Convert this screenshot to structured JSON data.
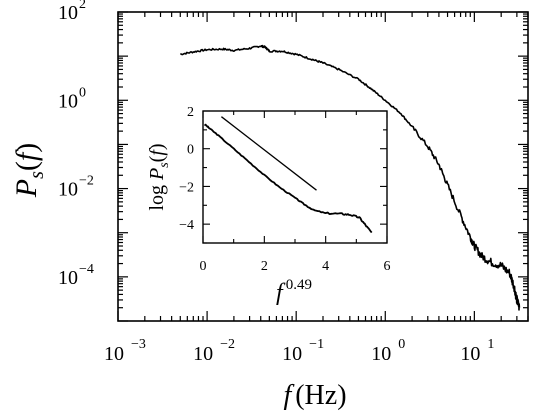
{
  "chart_data": [
    {
      "type": "line",
      "role": "main",
      "xscale": "log",
      "yscale": "log",
      "xlim": [
        0.001,
        40
      ],
      "ylim": [
        1e-05,
        100
      ],
      "xlabel": {
        "italic": "f",
        "unit": "(Hz)"
      },
      "ylabel": {
        "italic": "P",
        "sub": "s",
        "arg": "f"
      },
      "xticks": [
        {
          "value": 0.001,
          "base": "10",
          "exp": "−3"
        },
        {
          "value": 0.01,
          "base": "10",
          "exp": "−2"
        },
        {
          "value": 0.1,
          "base": "10",
          "exp": "−1"
        },
        {
          "value": 1,
          "base": "10",
          "exp": "0"
        },
        {
          "value": 10,
          "base": "10",
          "exp": "1"
        }
      ],
      "yticks": [
        {
          "value": 100,
          "base": "10",
          "exp": "2"
        },
        {
          "value": 1,
          "base": "10",
          "exp": "0"
        },
        {
          "value": 0.01,
          "base": "10",
          "exp": "−2"
        },
        {
          "value": 0.0001,
          "base": "10",
          "exp": "−4"
        }
      ],
      "series": [
        {
          "color": "#000000",
          "x": [
            0.005,
            0.007,
            0.01,
            0.015,
            0.02,
            0.03,
            0.04,
            0.045,
            0.05,
            0.07,
            0.1,
            0.15,
            0.2,
            0.3,
            0.5,
            0.7,
            1.0,
            1.5,
            2.0,
            3.0,
            4.0,
            5.0,
            7.0,
            9.0,
            10.0,
            12.0,
            15.0,
            20.0,
            25.0,
            28.0,
            30.0,
            32.0
          ],
          "y": [
            11,
            12.5,
            14,
            14.5,
            13.5,
            15,
            17,
            16,
            13,
            13,
            11,
            8.5,
            7,
            5,
            3,
            1.8,
            1.0,
            0.5,
            0.25,
            0.09,
            0.035,
            0.012,
            0.0025,
            0.0008,
            0.0005,
            0.0003,
            0.00022,
            0.00018,
            0.00012,
            6e-05,
            3e-05,
            2e-05
          ]
        }
      ]
    },
    {
      "type": "line",
      "role": "inset",
      "xlim": [
        0,
        6
      ],
      "ylim": [
        -5,
        2
      ],
      "xlabel": {
        "italic": "f",
        "exp": "0.49"
      },
      "ylabel": {
        "prefix": "log",
        "italic": "P",
        "sub": "s",
        "arg": "f"
      },
      "xticks": [
        0,
        2,
        4,
        6
      ],
      "yticks": [
        2,
        0,
        -2,
        -4
      ],
      "series": [
        {
          "color": "#000000",
          "x": [
            0.05,
            0.2,
            0.5,
            1.0,
            1.5,
            2.0,
            2.5,
            3.0,
            3.3,
            3.6,
            4.0,
            4.5,
            4.8,
            5.1,
            5.3,
            5.5
          ],
          "y": [
            1.3,
            1.1,
            0.7,
            0.0,
            -0.7,
            -1.4,
            -2.05,
            -2.6,
            -2.95,
            -3.25,
            -3.42,
            -3.45,
            -3.5,
            -3.65,
            -4.05,
            -4.45
          ]
        },
        {
          "color": "#000000",
          "x": [
            0.6,
            3.7
          ],
          "y": [
            1.7,
            -2.2
          ]
        }
      ]
    }
  ]
}
